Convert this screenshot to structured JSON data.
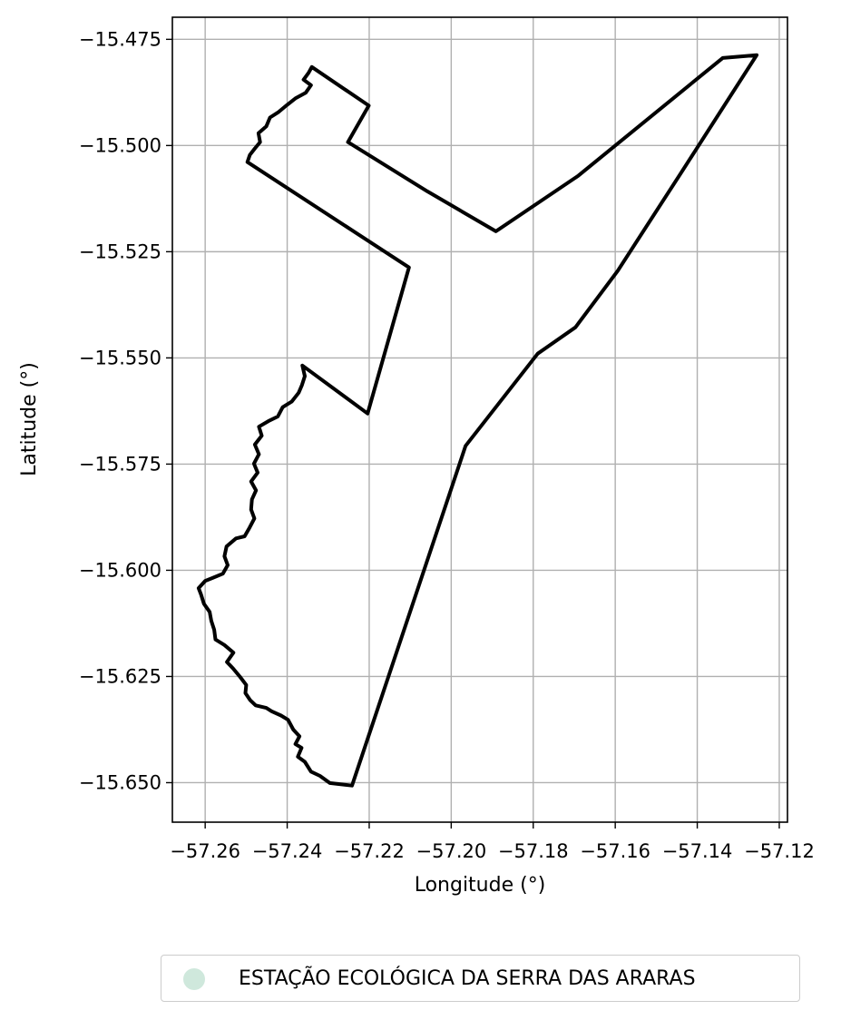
{
  "chart_data": {
    "type": "map",
    "xlabel": "Longitude (°)",
    "ylabel": "Latitude (°)",
    "xlim": [
      -57.268,
      -57.118
    ],
    "ylim": [
      -15.6593,
      -15.4698
    ],
    "xticks": [
      -57.26,
      -57.24,
      -57.22,
      -57.2,
      -57.18,
      -57.16,
      -57.14,
      -57.12
    ],
    "xtick_labels": [
      "−57.26",
      "−57.24",
      "−57.22",
      "−57.20",
      "−57.18",
      "−57.16",
      "−57.14",
      "−57.12"
    ],
    "yticks": [
      -15.475,
      -15.5,
      -15.525,
      -15.55,
      -15.575,
      -15.6,
      -15.625,
      -15.65
    ],
    "ytick_labels": [
      "−15.475",
      "−15.500",
      "−15.525",
      "−15.550",
      "−15.575",
      "−15.600",
      "−15.625",
      "−15.650"
    ],
    "grid": true,
    "legend_position": "bottom-center, below axes",
    "series": [
      {
        "name": "ESTAÇÃO ECOLÓGICA DA SERRA DAS ARARAS",
        "fill_color": "#cfe8dc",
        "edge_color": "#000000",
        "boundary": [
          [
            -57.2242,
            -15.6507
          ],
          [
            -57.2296,
            -15.6501
          ],
          [
            -57.232,
            -15.6484
          ],
          [
            -57.2342,
            -15.6474
          ],
          [
            -57.2357,
            -15.6451
          ],
          [
            -57.2374,
            -15.6439
          ],
          [
            -57.2365,
            -15.6418
          ],
          [
            -57.238,
            -15.6409
          ],
          [
            -57.237,
            -15.6391
          ],
          [
            -57.2385,
            -15.6375
          ],
          [
            -57.2398,
            -15.6352
          ],
          [
            -57.2415,
            -15.6342
          ],
          [
            -57.2438,
            -15.6332
          ],
          [
            -57.2451,
            -15.6324
          ],
          [
            -57.2477,
            -15.6318
          ],
          [
            -57.249,
            -15.6306
          ],
          [
            -57.2502,
            -15.6289
          ],
          [
            -57.25,
            -15.627
          ],
          [
            -57.2515,
            -15.6251
          ],
          [
            -57.2532,
            -15.6231
          ],
          [
            -57.2547,
            -15.6216
          ],
          [
            -57.2531,
            -15.6194
          ],
          [
            -57.2553,
            -15.6176
          ],
          [
            -57.2575,
            -15.6163
          ],
          [
            -57.2578,
            -15.614
          ],
          [
            -57.2585,
            -15.6119
          ],
          [
            -57.2589,
            -15.6098
          ],
          [
            -57.2603,
            -15.6079
          ],
          [
            -57.261,
            -15.6057
          ],
          [
            -57.2616,
            -15.6042
          ],
          [
            -57.26,
            -15.6025
          ],
          [
            -57.2582,
            -15.6018
          ],
          [
            -57.2557,
            -15.6008
          ],
          [
            -57.2545,
            -15.5988
          ],
          [
            -57.2553,
            -15.5967
          ],
          [
            -57.2548,
            -15.5944
          ],
          [
            -57.2525,
            -15.5925
          ],
          [
            -57.2504,
            -15.592
          ],
          [
            -57.2492,
            -15.59
          ],
          [
            -57.248,
            -15.5878
          ],
          [
            -57.2488,
            -15.5857
          ],
          [
            -57.2486,
            -15.5833
          ],
          [
            -57.2476,
            -15.5812
          ],
          [
            -57.2488,
            -15.5791
          ],
          [
            -57.2472,
            -15.577
          ],
          [
            -57.2481,
            -15.5749
          ],
          [
            -57.2469,
            -15.5727
          ],
          [
            -57.2479,
            -15.5704
          ],
          [
            -57.2462,
            -15.5683
          ],
          [
            -57.2469,
            -15.5662
          ],
          [
            -57.2446,
            -15.5649
          ],
          [
            -57.2423,
            -15.5638
          ],
          [
            -57.2411,
            -15.5616
          ],
          [
            -57.2389,
            -15.5603
          ],
          [
            -57.2372,
            -15.5582
          ],
          [
            -57.2364,
            -15.5564
          ],
          [
            -57.2357,
            -15.5543
          ],
          [
            -57.2363,
            -15.5518
          ],
          [
            -57.2204,
            -15.5631
          ],
          [
            -57.2103,
            -15.5287
          ],
          [
            -57.2497,
            -15.5039
          ],
          [
            -57.2491,
            -15.5022
          ],
          [
            -57.2479,
            -15.5007
          ],
          [
            -57.2466,
            -15.4992
          ],
          [
            -57.247,
            -15.4971
          ],
          [
            -57.2451,
            -15.4955
          ],
          [
            -57.2442,
            -15.4934
          ],
          [
            -57.2421,
            -15.4921
          ],
          [
            -57.2401,
            -15.4905
          ],
          [
            -57.238,
            -15.4889
          ],
          [
            -57.2355,
            -15.4876
          ],
          [
            -57.2342,
            -15.4858
          ],
          [
            -57.236,
            -15.4845
          ],
          [
            -57.2348,
            -15.4829
          ],
          [
            -57.234,
            -15.4815
          ],
          [
            -57.2201,
            -15.4906
          ],
          [
            -57.2252,
            -15.4992
          ],
          [
            -57.2058,
            -15.5108
          ],
          [
            -57.1891,
            -15.5202
          ],
          [
            -57.169,
            -15.5071
          ],
          [
            -57.1338,
            -15.4794
          ],
          [
            -57.1255,
            -15.4787
          ],
          [
            -57.144,
            -15.5065
          ],
          [
            -57.1594,
            -15.5295
          ],
          [
            -57.1697,
            -15.5428
          ],
          [
            -57.1789,
            -15.549
          ],
          [
            -57.1965,
            -15.5707
          ],
          [
            -57.2242,
            -15.6507
          ]
        ]
      }
    ]
  }
}
